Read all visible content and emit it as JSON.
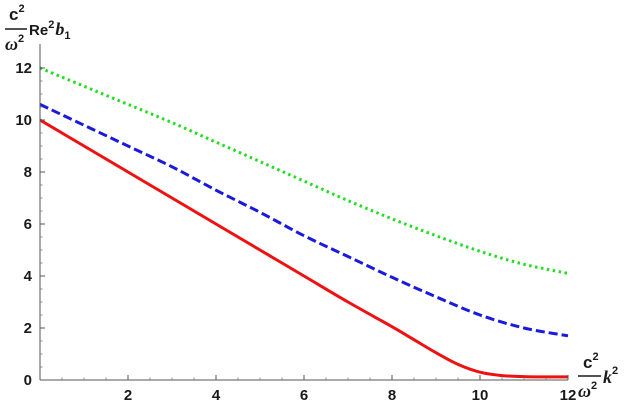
{
  "chart_data": {
    "type": "line",
    "title": "",
    "xlim": [
      0,
      12
    ],
    "ylim": [
      0,
      12
    ],
    "x_ticks": [
      "2",
      "4",
      "6",
      "8",
      "10",
      "12"
    ],
    "y_ticks": [
      "0",
      "2",
      "4",
      "6",
      "8",
      "10",
      "12"
    ],
    "xlabel": {
      "num_base": "c",
      "num_sup": "2",
      "den_base": "ω",
      "den_sup": "2",
      "tail_base": "k",
      "tail_sup": "2"
    },
    "ylabel": {
      "num_base": "c",
      "num_sup": "2",
      "den_base": "ω",
      "den_sup": "2",
      "tail_re": "Re",
      "tail_re_sup": "2",
      "tail_var": "b",
      "tail_sub": "1"
    },
    "grid": false,
    "series": [
      {
        "color": "#ee1111",
        "dash": "solid",
        "x": [
          0,
          1,
          2,
          3,
          4,
          5,
          6,
          7,
          8,
          8.5,
          9,
          9.5,
          10,
          10.5,
          11,
          11.5,
          12
        ],
        "y": [
          10.0,
          9.0,
          8.0,
          7.0,
          6.0,
          5.0,
          4.0,
          3.0,
          2.05,
          1.55,
          1.05,
          0.6,
          0.3,
          0.17,
          0.13,
          0.12,
          0.12
        ]
      },
      {
        "color": "#1a1add",
        "dash": "dashed",
        "x": [
          0,
          1,
          2,
          3,
          4,
          5,
          6,
          7,
          8,
          9,
          10,
          11,
          12
        ],
        "y": [
          10.6,
          9.8,
          9.0,
          8.2,
          7.3,
          6.45,
          5.55,
          4.75,
          3.95,
          3.2,
          2.5,
          2.0,
          1.7
        ]
      },
      {
        "color": "#22dd22",
        "dash": "dotted",
        "x": [
          0,
          1,
          2,
          3,
          4,
          5,
          6,
          7,
          8,
          9,
          10,
          11,
          12
        ],
        "y": [
          12.0,
          11.3,
          10.6,
          9.9,
          9.15,
          8.4,
          7.65,
          6.9,
          6.2,
          5.55,
          4.95,
          4.45,
          4.1
        ]
      }
    ]
  }
}
